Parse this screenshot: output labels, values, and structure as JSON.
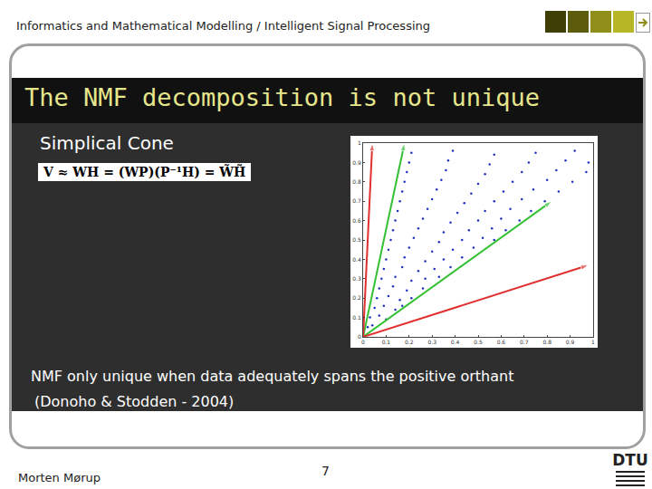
{
  "header": {
    "text": "Informatics and Mathematical Modelling / Intelligent Signal Processing"
  },
  "slide": {
    "title": "The NMF decomposition is not unique",
    "subtitle": "Simplical Cone",
    "formula": "V ≈ WH = (WP)(P⁻¹H) = W̃H̃",
    "caption": [
      "NMF only unique when data adequately spans the positive orthant",
      "(Donoho & Stodden - 2004)"
    ]
  },
  "footer": {
    "author": "Morten Mørup",
    "page": 7,
    "logo": "DTU"
  },
  "chart_data": {
    "type": "scatter",
    "xlim": [
      0,
      1
    ],
    "ylim": [
      0,
      1
    ],
    "xticks": [
      0,
      0.1,
      0.2,
      0.3,
      0.4,
      0.5,
      0.6,
      0.7,
      0.8,
      0.9,
      1
    ],
    "yticks": [
      0,
      0.1,
      0.2,
      0.3,
      0.4,
      0.5,
      0.6,
      0.7,
      0.8,
      0.9,
      1
    ],
    "grid": false,
    "series": [
      {
        "type": "scatter",
        "color": "#1f2fbf",
        "marker": "dot",
        "x": [
          0.02,
          0.04,
          0.03,
          0.07,
          0.1,
          0.05,
          0.09,
          0.14,
          0.17,
          0.06,
          0.11,
          0.16,
          0.21,
          0.07,
          0.13,
          0.19,
          0.26,
          0.08,
          0.14,
          0.21,
          0.27,
          0.33,
          0.09,
          0.17,
          0.24,
          0.31,
          0.38,
          0.1,
          0.18,
          0.27,
          0.35,
          0.43,
          0.11,
          0.2,
          0.3,
          0.39,
          0.48,
          0.12,
          0.22,
          0.33,
          0.43,
          0.52,
          0.57,
          0.13,
          0.24,
          0.35,
          0.46,
          0.56,
          0.62,
          0.14,
          0.26,
          0.38,
          0.5,
          0.6,
          0.68,
          0.15,
          0.28,
          0.41,
          0.53,
          0.64,
          0.73,
          0.16,
          0.3,
          0.44,
          0.57,
          0.69,
          0.79,
          0.17,
          0.32,
          0.47,
          0.61,
          0.74,
          0.85,
          0.18,
          0.34,
          0.5,
          0.65,
          0.8,
          0.91,
          0.19,
          0.36,
          0.53,
          0.69,
          0.84,
          0.97,
          0.2,
          0.37,
          0.55,
          0.72,
          0.88,
          0.98,
          0.21,
          0.39,
          0.57,
          0.75,
          0.92
        ],
        "values": [
          0.05,
          0.06,
          0.1,
          0.11,
          0.09,
          0.15,
          0.16,
          0.14,
          0.16,
          0.2,
          0.21,
          0.19,
          0.2,
          0.25,
          0.26,
          0.24,
          0.25,
          0.3,
          0.31,
          0.29,
          0.3,
          0.31,
          0.35,
          0.36,
          0.34,
          0.35,
          0.36,
          0.4,
          0.41,
          0.39,
          0.4,
          0.41,
          0.45,
          0.46,
          0.44,
          0.45,
          0.46,
          0.5,
          0.51,
          0.49,
          0.5,
          0.51,
          0.5,
          0.55,
          0.56,
          0.54,
          0.55,
          0.56,
          0.55,
          0.6,
          0.61,
          0.59,
          0.6,
          0.61,
          0.6,
          0.65,
          0.66,
          0.64,
          0.65,
          0.66,
          0.65,
          0.7,
          0.71,
          0.69,
          0.7,
          0.71,
          0.7,
          0.75,
          0.76,
          0.74,
          0.75,
          0.76,
          0.75,
          0.8,
          0.81,
          0.79,
          0.8,
          0.81,
          0.8,
          0.85,
          0.86,
          0.84,
          0.85,
          0.86,
          0.85,
          0.9,
          0.91,
          0.89,
          0.9,
          0.91,
          0.9,
          0.95,
          0.96,
          0.94,
          0.95,
          0.96
        ]
      },
      {
        "type": "line",
        "color": "#33c033",
        "marker": "arrow",
        "x": [
          0,
          0.18
        ],
        "values": [
          0,
          1
        ]
      },
      {
        "type": "line",
        "color": "#33c033",
        "marker": "arrow",
        "x": [
          0,
          0.82
        ],
        "values": [
          0,
          0.7
        ]
      },
      {
        "type": "line",
        "color": "#e03030",
        "marker": "arrow",
        "x": [
          0,
          0.04
        ],
        "values": [
          0,
          1
        ]
      },
      {
        "type": "line",
        "color": "#e03030",
        "marker": "arrow",
        "x": [
          0,
          0.98
        ],
        "values": [
          0,
          0.37
        ]
      }
    ]
  }
}
